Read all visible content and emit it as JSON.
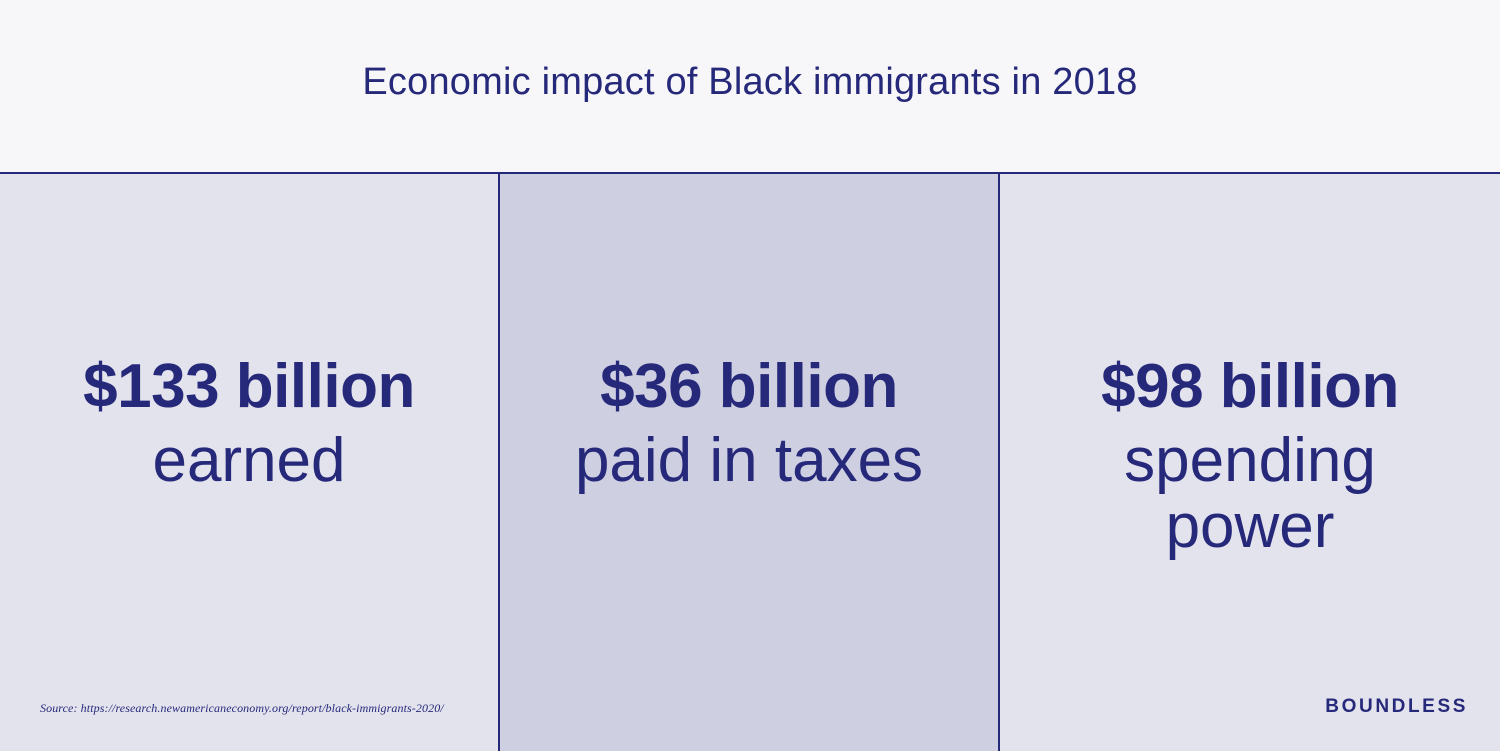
{
  "header": {
    "title": "Economic impact of Black immigrants in 2018"
  },
  "stats": [
    {
      "value": "$133 billion",
      "label": "earned"
    },
    {
      "value": "$36 billion",
      "label": "paid in taxes"
    },
    {
      "value": "$98 billion",
      "label": "spending\npower"
    }
  ],
  "footer": {
    "source": "Source: https://research.newamericaneconomy.org/report/black-immigrants-2020/",
    "brand": "BOUNDLESS"
  },
  "colors": {
    "primary": "#26287a",
    "header_bg": "#f7f7f9",
    "panel_light": "#e3e3ed",
    "panel_mid": "#cfcfe2"
  }
}
